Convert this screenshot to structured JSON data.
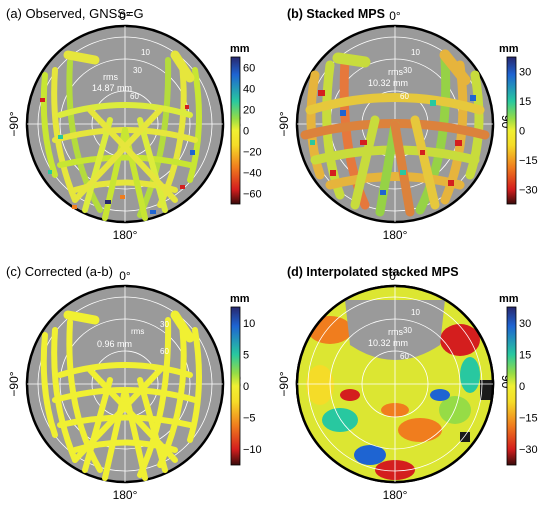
{
  "chart_data": [
    {
      "type": "heatmap",
      "projection": "polar skyplot",
      "title": "(a) Observed, GNSS=G",
      "direction_labels": {
        "top": "0°",
        "bottom": "180°",
        "left": "−90°",
        "right": "90°"
      },
      "elevation_ring_labels": [
        "10",
        "30",
        "60"
      ],
      "rms_label": "rms",
      "rms_value": "14.87 mm",
      "colorbar": {
        "unit": "mm",
        "ticks": [
          "60",
          "40",
          "20",
          "0",
          "−20",
          "−40",
          "−60"
        ],
        "range": [
          -70,
          70
        ]
      },
      "coverage": "satellite tracks",
      "palette": [
        "#3a0b0b",
        "#d41e1e",
        "#f07d1e",
        "#f5dc28",
        "#f0f032",
        "#96dc46",
        "#28c8a0",
        "#1e64d2",
        "#28286e"
      ]
    },
    {
      "type": "heatmap",
      "projection": "polar skyplot",
      "title": "(b) Stacked MPS",
      "direction_labels": {
        "top": "0°",
        "bottom": "180°",
        "left": "−90°",
        "right": "90°"
      },
      "elevation_ring_labels": [
        "10",
        "30",
        "60"
      ],
      "rms_label": "rms",
      "rms_value": "10.32 mm",
      "colorbar": {
        "unit": "mm",
        "ticks": [
          "30",
          "15",
          "0",
          "−15",
          "−30"
        ],
        "range": [
          -30,
          30
        ]
      },
      "coverage": "satellite tracks"
    },
    {
      "type": "heatmap",
      "projection": "polar skyplot",
      "title": "(c) Corrected (a-b)",
      "direction_labels": {
        "top": "0°",
        "bottom": "180°",
        "left": "−90°",
        "right": "90°"
      },
      "elevation_ring_labels": [
        "rms",
        "30",
        "60"
      ],
      "rms_label": "",
      "rms_value": "0.96 mm",
      "colorbar": {
        "unit": "mm",
        "ticks": [
          "10",
          "5",
          "0",
          "−5",
          "−10"
        ],
        "range": [
          -10,
          10
        ]
      },
      "coverage": "satellite tracks"
    },
    {
      "type": "heatmap",
      "projection": "polar skyplot",
      "title": "(d) Interpolated stacked MPS",
      "direction_labels": {
        "top": "0°",
        "bottom": "180°",
        "left": "−90°",
        "right": "90°"
      },
      "elevation_ring_labels": [
        "10",
        "30",
        "60"
      ],
      "rms_label": "rms",
      "rms_value": "10.32 mm",
      "colorbar": {
        "unit": "mm",
        "ticks": [
          "30",
          "15",
          "0",
          "−15",
          "−30"
        ],
        "range": [
          -30,
          30
        ]
      },
      "coverage": "interpolated full field"
    }
  ]
}
